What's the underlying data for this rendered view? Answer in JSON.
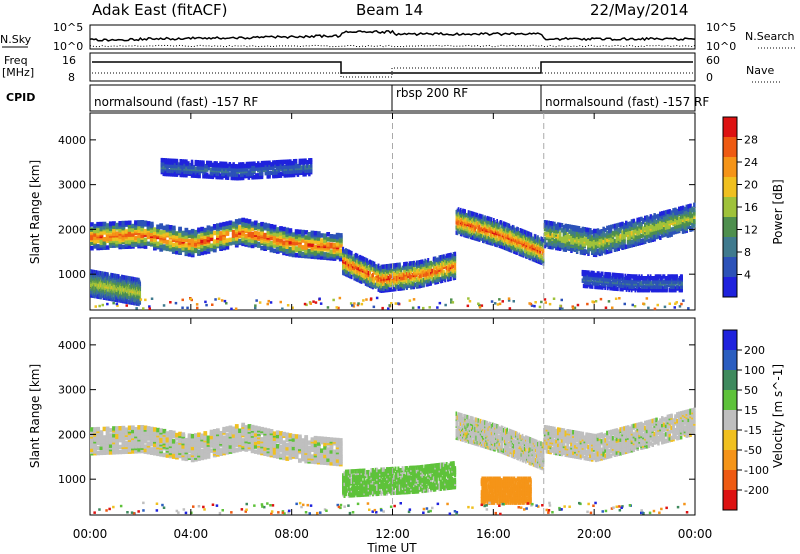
{
  "header": {
    "title_left": "Adak East (fitACF)",
    "title_center": "Beam 14",
    "title_right": "22/May/2014"
  },
  "panels": {
    "nsky_label": "N.Sky",
    "nsky_ticks": [
      "10^5",
      "10^0"
    ],
    "nsearch_label": "N.Search",
    "nsearch_ticks": [
      "10^5",
      "10^0"
    ],
    "freq_label": "Freq",
    "freq_unit": "[MHz]",
    "freq_ticks": [
      "16",
      "8"
    ],
    "nave_label": "Nave",
    "nave_ticks": [
      "60",
      "0"
    ],
    "cpid_label": "CPID",
    "cpid_segments": [
      "normalsound (fast) -157 RF",
      "rbsp 200 RF",
      "normalsound (fast) -157 RF"
    ]
  },
  "colors": {
    "power_scale": [
      "#1f22dd",
      "#2c52b8",
      "#3f7a8e",
      "#4e8f4e",
      "#9fc23a",
      "#f0c020",
      "#f59418",
      "#ee5a12",
      "#dd1212"
    ],
    "velocity_scale": [
      "#1f22dd",
      "#2b5ec0",
      "#3f8a5e",
      "#5ec23a",
      "#bfbfbf",
      "#f0c020",
      "#f59418",
      "#ee5a12",
      "#dd1212"
    ]
  },
  "chart_data": [
    {
      "type": "heatmap",
      "title": "",
      "xlabel": "",
      "ylabel": "Slant Range [km]",
      "x_ticks": [
        "00:00",
        "04:00",
        "08:00",
        "12:00",
        "16:00",
        "20:00",
        "00:00"
      ],
      "y_ticks": [
        1000,
        2000,
        3000,
        4000
      ],
      "ylim": [
        200,
        4600
      ],
      "colorbar_label": "Power [dB]",
      "colorbar_ticks": [
        4,
        8,
        12,
        16,
        20,
        24,
        28
      ],
      "bands": [
        {
          "t0": 0.0,
          "t1": 10.0,
          "range_center": [
            1850,
            1900,
            1700,
            1950,
            1700,
            1600
          ],
          "level": "high"
        },
        {
          "t0": 0.0,
          "t1": 2.0,
          "range_center": [
            800,
            700,
            600
          ],
          "level": "mid"
        },
        {
          "t0": 10.0,
          "t1": 14.5,
          "range_center": [
            1300,
            900,
            1000,
            1200
          ],
          "level": "high"
        },
        {
          "t0": 14.5,
          "t1": 18.0,
          "range_center": [
            2200,
            1900,
            1500
          ],
          "level": "high"
        },
        {
          "t0": 18.0,
          "t1": 24.0,
          "range_center": [
            1900,
            1700,
            2000,
            2300
          ],
          "level": "mid"
        },
        {
          "t0": 2.8,
          "t1": 8.8,
          "range_center": [
            3400,
            3300,
            3400
          ],
          "level": "low"
        },
        {
          "t0": 19.5,
          "t1": 23.5,
          "range_center": [
            900,
            800,
            800
          ],
          "level": "low"
        }
      ]
    },
    {
      "type": "heatmap",
      "title": "",
      "xlabel": "Time UT",
      "ylabel": "Slant Range [km]",
      "x_ticks": [
        "00:00",
        "04:00",
        "08:00",
        "12:00",
        "16:00",
        "20:00",
        "00:00"
      ],
      "y_ticks": [
        1000,
        2000,
        3000,
        4000
      ],
      "ylim": [
        200,
        4600
      ],
      "colorbar_label": "Velocity [m s^-1]",
      "colorbar_ticks": [
        200,
        100,
        50,
        15,
        -15,
        -50,
        -100,
        -200
      ],
      "bands": [
        {
          "t0": 0.0,
          "t1": 10.0,
          "range_center": [
            1850,
            1900,
            1700,
            1950,
            1700,
            1600
          ],
          "level": "grey"
        },
        {
          "t0": 10.0,
          "t1": 14.5,
          "range_center": [
            900,
            950,
            1000,
            1100
          ],
          "level": "green"
        },
        {
          "t0": 14.5,
          "t1": 18.0,
          "range_center": [
            2200,
            1900,
            1500
          ],
          "level": "grey"
        },
        {
          "t0": 15.5,
          "t1": 17.5,
          "range_center": [
            750,
            750
          ],
          "level": "orange"
        },
        {
          "t0": 18.0,
          "t1": 24.0,
          "range_center": [
            1900,
            1700,
            2000,
            2300
          ],
          "level": "grey"
        }
      ]
    }
  ]
}
